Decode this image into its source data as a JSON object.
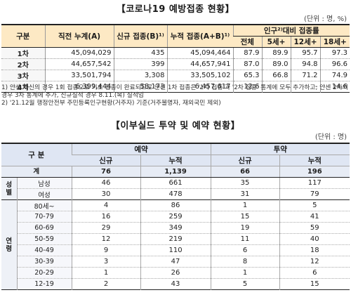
{
  "vaccination": {
    "title": "【코로나19 예방접종 현황】",
    "unit": "(단위 : 명, %)",
    "headers": {
      "category": "구분",
      "prev_cumulative": "직전 누계(A)",
      "new": "신규 접종(B)¹⁾",
      "cumulative": "누적 접종(A+B)¹⁾",
      "rate_group": "인구²⁾대비 접종률",
      "total": "전체",
      "age5": "5세+",
      "age12": "12세+",
      "age18": "18세+"
    },
    "rows": [
      {
        "label": "1차",
        "prev": "45,094,029",
        "new": "435",
        "cum": "45,094,464",
        "total": "87.9",
        "a5": "89.9",
        "a12": "95.7",
        "a18": "97.3"
      },
      {
        "label": "2차",
        "prev": "44,657,542",
        "new": "399",
        "cum": "44,657,941",
        "total": "87.0",
        "a5": "89.0",
        "a12": "94.8",
        "a18": "96.6"
      },
      {
        "label": "3차",
        "prev": "33,501,794",
        "new": "3,308",
        "cum": "33,505,102",
        "total": "65.3",
        "a5": "66.8",
        "a12": "71.2",
        "a18": "74.9"
      },
      {
        "label": "4차",
        "prev": "6,399,444",
        "new": "58,173",
        "cum": "6,457,617",
        "total": "12.6",
        "a5": "-",
        "a12": "-",
        "a18": "14.6"
      }
    ],
    "notes": [
      "1) 얀센 백신의 경우 1회 접종으로 기초 접종이 완료되므로 얀센 1차 접종은 '1차 접종'과 '2차 접종' 통계에 모두 추가하고, 얀센 2차의 경우 3차 통계에 추가, 신규실적 경우 8.11.(목) 실적임",
      "2) '21.12월 행정안전부 주민등록인구현황(거주자) 기준(거주불명자, 재외국민 제외)"
    ]
  },
  "evusheld": {
    "title": "【이부실드 투약 및 예약 현황】",
    "unit": "(단위 : 명)",
    "headers": {
      "category": "구 분",
      "reservation": "예약",
      "administration": "투약",
      "new": "신규",
      "cumulative": "누적"
    },
    "total": {
      "label": "계",
      "res_new": "76",
      "res_cum": "1,139",
      "adm_new": "66",
      "adm_cum": "196"
    },
    "sex_group": "성별",
    "sex": [
      {
        "label": "남성",
        "res_new": "46",
        "res_cum": "661",
        "adm_new": "35",
        "adm_cum": "117"
      },
      {
        "label": "여성",
        "res_new": "30",
        "res_cum": "478",
        "adm_new": "31",
        "adm_cum": "79"
      }
    ],
    "age_group": "연령",
    "ages": [
      {
        "label": "80세~",
        "res_new": "4",
        "res_cum": "86",
        "adm_new": "1",
        "adm_cum": "5"
      },
      {
        "label": "70-79",
        "res_new": "16",
        "res_cum": "259",
        "adm_new": "15",
        "adm_cum": "41"
      },
      {
        "label": "60-69",
        "res_new": "29",
        "res_cum": "349",
        "adm_new": "19",
        "adm_cum": "59"
      },
      {
        "label": "50-59",
        "res_new": "12",
        "res_cum": "219",
        "adm_new": "11",
        "adm_cum": "40"
      },
      {
        "label": "40-49",
        "res_new": "9",
        "res_cum": "110",
        "adm_new": "6",
        "adm_cum": "18"
      },
      {
        "label": "30-39",
        "res_new": "3",
        "res_cum": "47",
        "adm_new": "8",
        "adm_cum": "12"
      },
      {
        "label": "20-29",
        "res_new": "1",
        "res_cum": "26",
        "adm_new": "1",
        "adm_cum": "6"
      },
      {
        "label": "12-19",
        "res_new": "2",
        "res_cum": "43",
        "adm_new": "5",
        "adm_cum": "15"
      }
    ]
  }
}
